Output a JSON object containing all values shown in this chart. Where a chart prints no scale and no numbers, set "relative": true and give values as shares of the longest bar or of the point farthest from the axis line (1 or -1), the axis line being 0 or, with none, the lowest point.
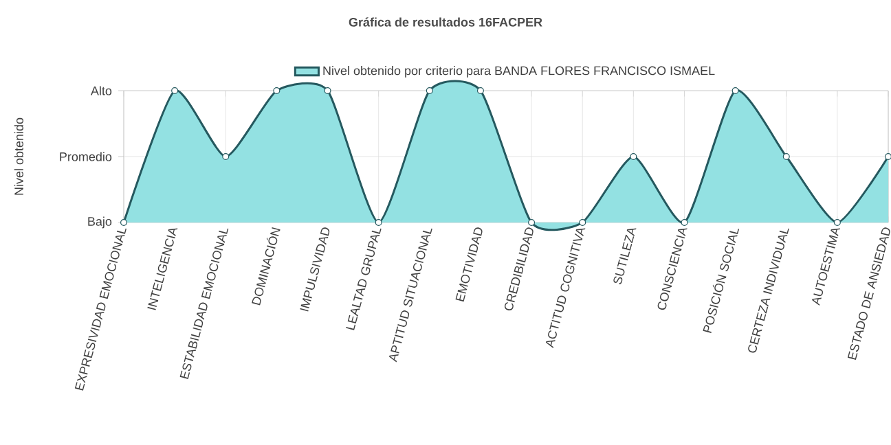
{
  "chart_data": {
    "type": "area",
    "title": "Gráfica de resultados 16FACPER",
    "ylabel": "Nivel obtenido",
    "relative": true,
    "categories": [
      "EXPRESIVIDAD EMOCIONAL",
      "INTELIGENCIA",
      "ESTABILIDAD EMOCIONAL",
      "DOMINACIÓN",
      "IMPULSIVIDAD",
      "LEALTAD GRUPAL",
      "APTITUD SITUACIONAL",
      "EMOTIVIDAD",
      "CREDIBILIDAD",
      "ACTITUD COGNITIVA",
      "SUTILEZA",
      "CONSCIENCIA",
      "POSICIÓN SOCIAL",
      "CERTEZA INDIVIDUAL",
      "AUTOESTIMA",
      "ESTADO DE ANSIEDAD"
    ],
    "series": [
      {
        "name": "Nivel obtenido por criterio para BANDA FLORES FRANCISCO ISMAEL",
        "color": "#25595f",
        "values": [
          0,
          1,
          0.5,
          1,
          1,
          0,
          1,
          1,
          0,
          0,
          0.5,
          0,
          1,
          0.5,
          0,
          0.5
        ]
      }
    ],
    "annotations": [
      "Bajo",
      "Promedio",
      "Alto"
    ],
    "grid": true,
    "legend": "top",
    "marker": "circle"
  }
}
